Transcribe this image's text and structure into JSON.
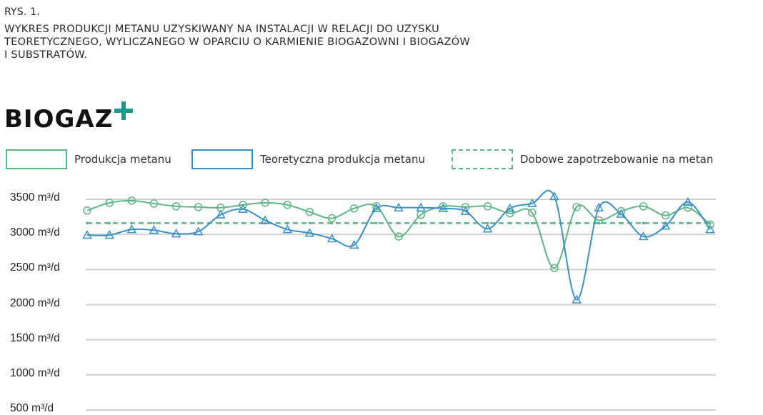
{
  "figure": {
    "label": "RYS. 1.",
    "title": "WYKRES PRODUKCJI METANU UZYSKIWANY NA INSTALACJI W RELACJI DO UZYSKU\nTEORETYCZNEGO, WYLICZANEGO W OPARCIU O KARMIENIE BIOGAZOWNI I BIOGAZÓW\nI SUBSTRATÓW."
  },
  "logo": {
    "text": "BIOGAZ",
    "accent_color": "#1a9a8c"
  },
  "chart_data": {
    "type": "line",
    "x": [
      1,
      2,
      3,
      4,
      5,
      6,
      7,
      8,
      9,
      10,
      11,
      12,
      13,
      14,
      15,
      16,
      17,
      18,
      19,
      20,
      21,
      22,
      23,
      24,
      25,
      26,
      27,
      28,
      29
    ],
    "series": [
      {
        "name": "Produkcja metanu",
        "color": "#5db585",
        "marker": "circle",
        "line_style": "solid",
        "values": [
          3340,
          3450,
          3480,
          3440,
          3400,
          3390,
          3380,
          3420,
          3450,
          3420,
          3320,
          3230,
          3370,
          3400,
          2970,
          3280,
          3400,
          3390,
          3400,
          3300,
          3310,
          2520,
          3390,
          3200,
          3330,
          3400,
          3270,
          3380,
          3140
        ]
      },
      {
        "name": "Teoretyczna produkcja metanu",
        "color": "#3a8fc4",
        "marker": "triangle",
        "line_style": "solid",
        "values": [
          2990,
          2990,
          3070,
          3060,
          3010,
          3040,
          3280,
          3360,
          3200,
          3070,
          3020,
          2940,
          2850,
          3370,
          3380,
          3380,
          3370,
          3330,
          3080,
          3370,
          3440,
          3540,
          2070,
          3380,
          3290,
          2970,
          3120,
          3460,
          3070
        ]
      },
      {
        "name": "Dobowe zapotrzebowanie na metan",
        "color": "#5db585",
        "marker": "dot",
        "line_style": "dashed",
        "values": [
          3160,
          3160,
          3160,
          3160,
          3160,
          3160,
          3160,
          3160,
          3160,
          3160,
          3160,
          3160,
          3160,
          3160,
          3160,
          3160,
          3160,
          3160,
          3160,
          3160,
          3160,
          3160,
          3160,
          3160,
          3160,
          3160,
          3160,
          3160,
          3160
        ]
      }
    ],
    "ylim": [
      500,
      3500
    ],
    "yticks": [
      3500,
      3000,
      2500,
      2000,
      1500,
      1000,
      500
    ],
    "ytick_labels": [
      "3500 m³/d",
      "3000 m³/d",
      "2500 m³/d",
      "2000 m³/d",
      "1500 m³/d",
      "1000 m³/d",
      "500 m³/d"
    ],
    "grid": "horizontal",
    "legend_position": "top"
  }
}
